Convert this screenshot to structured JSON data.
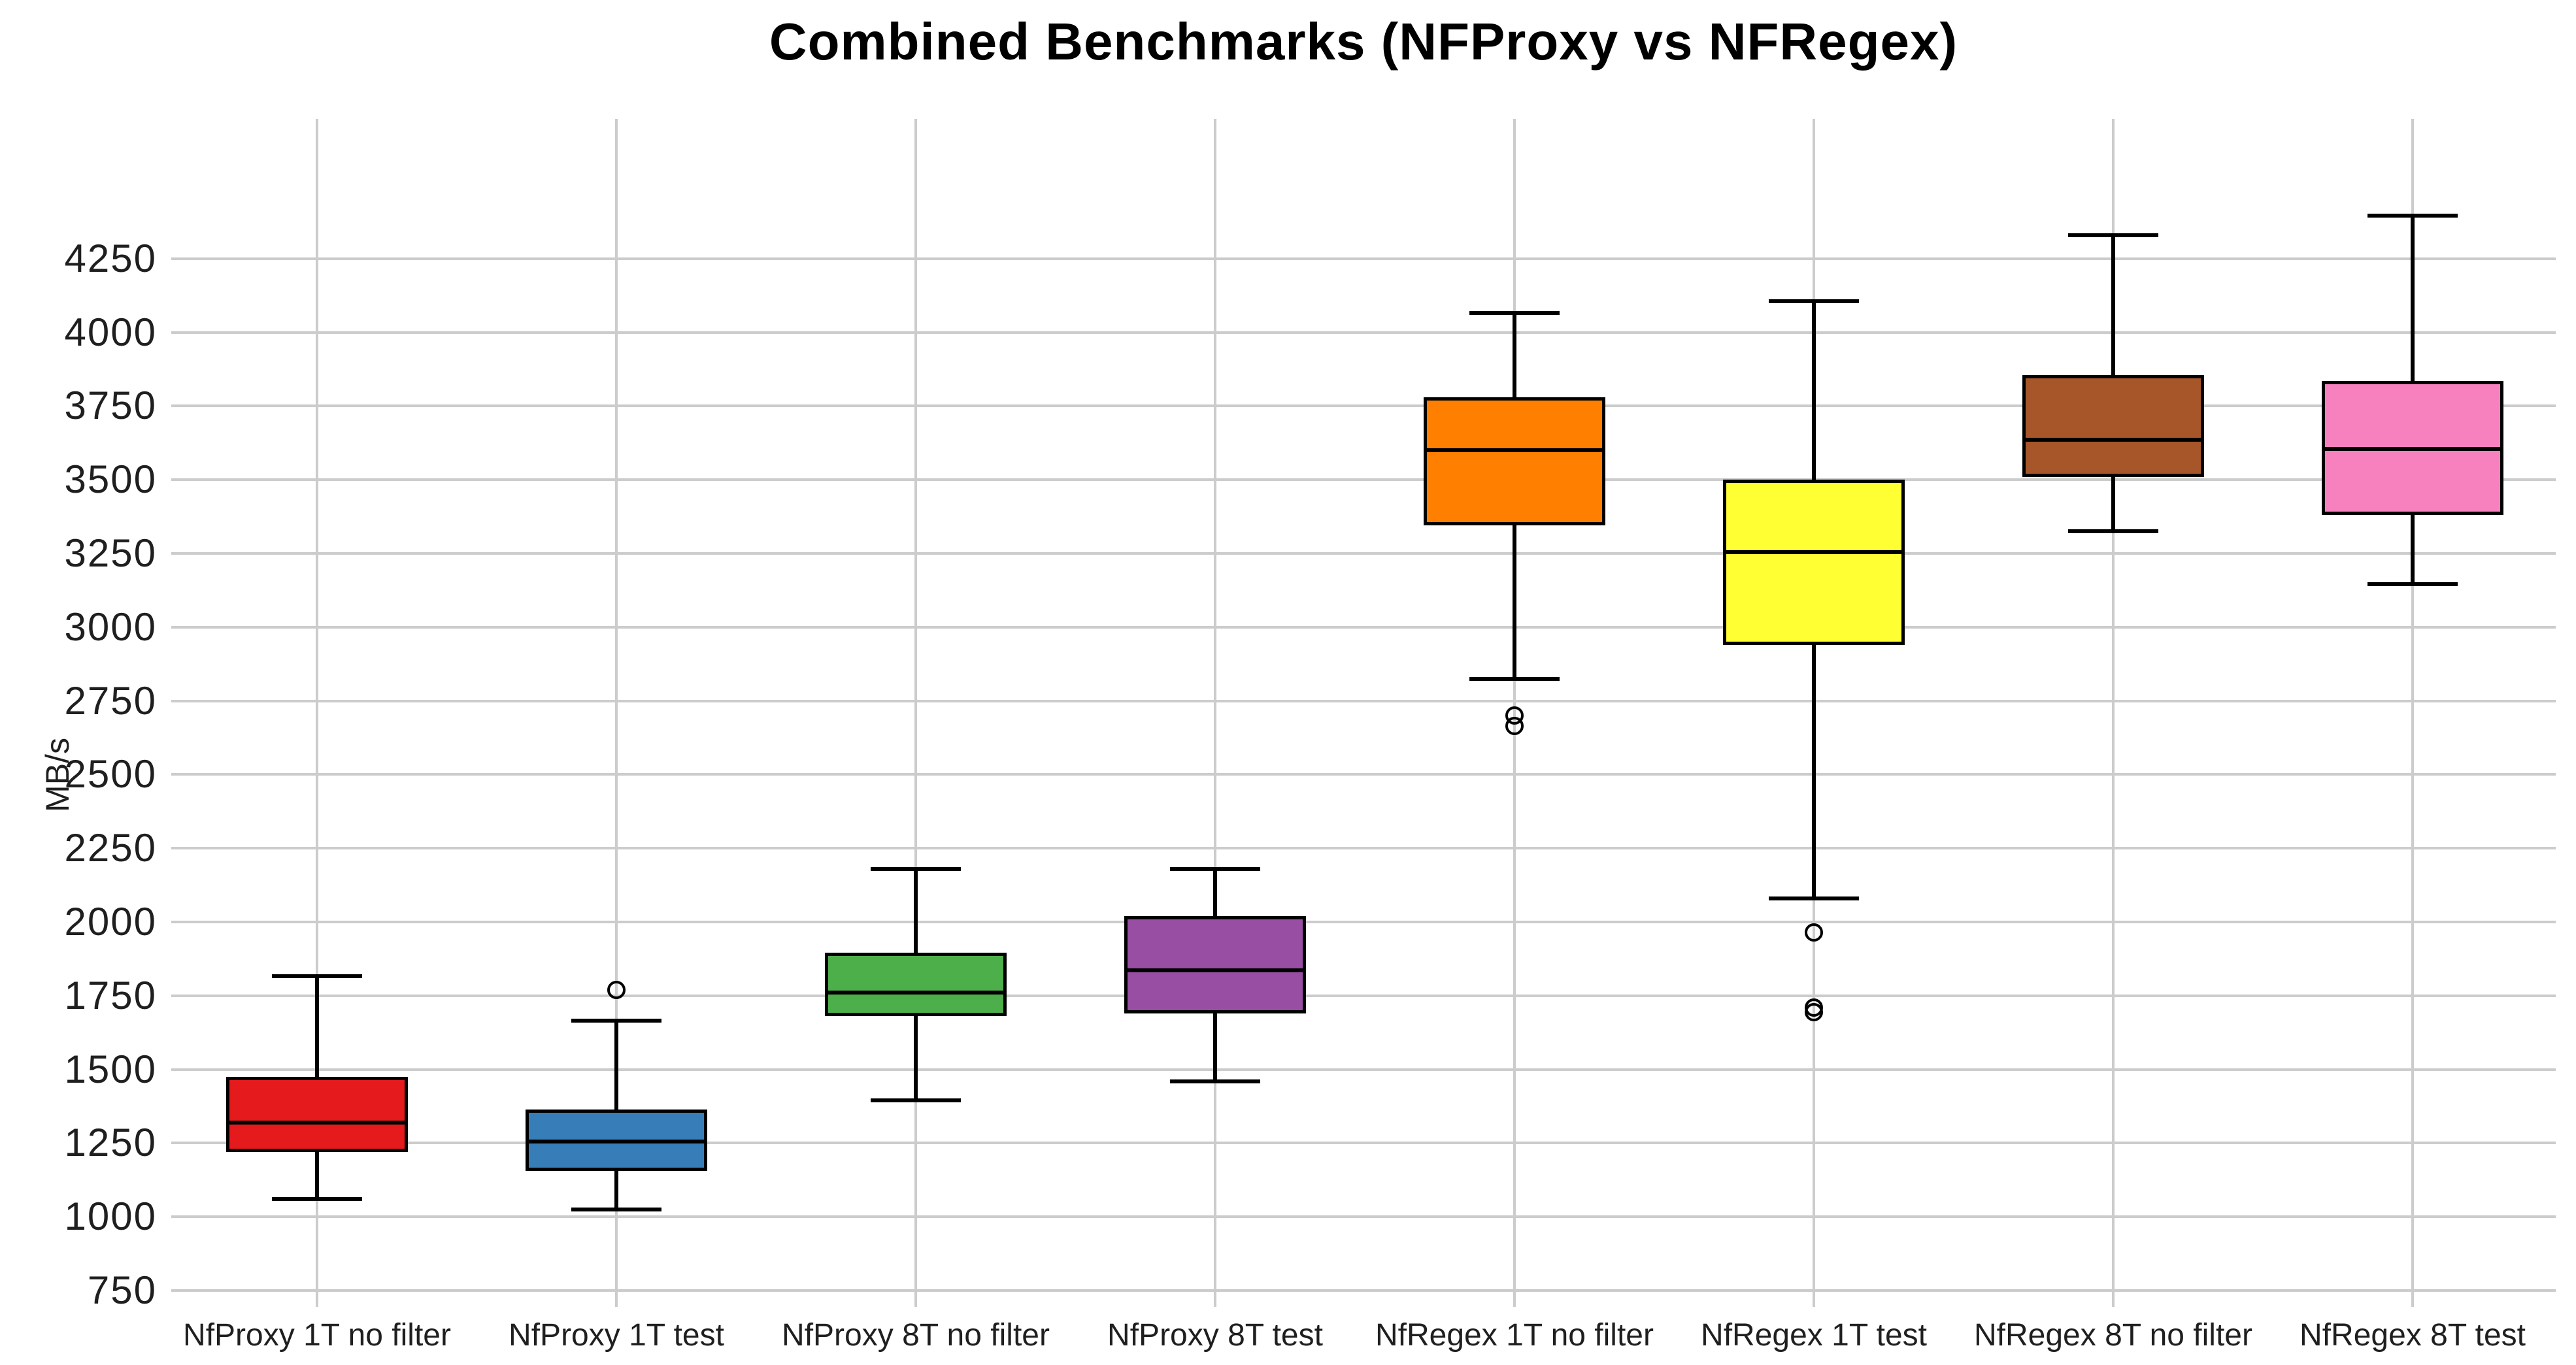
{
  "chart": {
    "title": "Combined Benchmarks (NFProxy vs NFRegex)"
  },
  "chart_data": {
    "type": "boxplot",
    "title": "Combined Benchmarks (NFProxy vs NFRegex)",
    "xlabel": "",
    "ylabel": "MB/s",
    "grid": true,
    "legend": null,
    "ylim": [
      700,
      4720
    ],
    "yticks": [
      4250,
      4000,
      3750,
      3500,
      3250,
      3000,
      2750,
      2500,
      2250,
      2000,
      1750,
      1500,
      1250,
      1000,
      750
    ],
    "categories": [
      "NfProxy 1T no filter",
      "NfProxy 1T test",
      "NfProxy 8T no filter",
      "NfProxy 8T test",
      "NfRegex 1T no filter",
      "NfRegex 1T test",
      "NfRegex 8T no filter",
      "NfRegex 8T test"
    ],
    "boxes": [
      {
        "label": "NfProxy 1T no filter",
        "color": "#e41a1c",
        "whisker_low": 1060,
        "q1": 1220,
        "median": 1320,
        "q3": 1475,
        "whisker_high": 1815,
        "outliers": []
      },
      {
        "label": "NfProxy 1T test",
        "color": "#377eb8",
        "whisker_low": 1025,
        "q1": 1155,
        "median": 1255,
        "q3": 1365,
        "whisker_high": 1665,
        "outliers": [
          1770
        ]
      },
      {
        "label": "NfProxy 8T no filter",
        "color": "#4daf4a",
        "whisker_low": 1395,
        "q1": 1680,
        "median": 1760,
        "q3": 1895,
        "whisker_high": 2180,
        "outliers": []
      },
      {
        "label": "NfProxy 8T test",
        "color": "#984ea3",
        "whisker_low": 1460,
        "q1": 1690,
        "median": 1835,
        "q3": 2020,
        "whisker_high": 2180,
        "outliers": []
      },
      {
        "label": "NfRegex 1T no filter",
        "color": "#ff7f00",
        "whisker_low": 2825,
        "q1": 3345,
        "median": 3600,
        "q3": 3780,
        "whisker_high": 4065,
        "outliers": [
          2700,
          2665
        ]
      },
      {
        "label": "NfRegex 1T test",
        "color": "#ffff33",
        "whisker_low": 2080,
        "q1": 2940,
        "median": 3255,
        "q3": 3500,
        "whisker_high": 4105,
        "outliers": [
          1965,
          1710,
          1695
        ]
      },
      {
        "label": "NfRegex 8T no filter",
        "color": "#a65628",
        "whisker_low": 3325,
        "q1": 3510,
        "median": 3635,
        "q3": 3855,
        "whisker_high": 4330,
        "outliers": []
      },
      {
        "label": "NfRegex 8T test",
        "color": "#f781bf",
        "whisker_low": 3145,
        "q1": 3380,
        "median": 3605,
        "q3": 3835,
        "whisker_high": 4395,
        "outliers": []
      }
    ]
  }
}
